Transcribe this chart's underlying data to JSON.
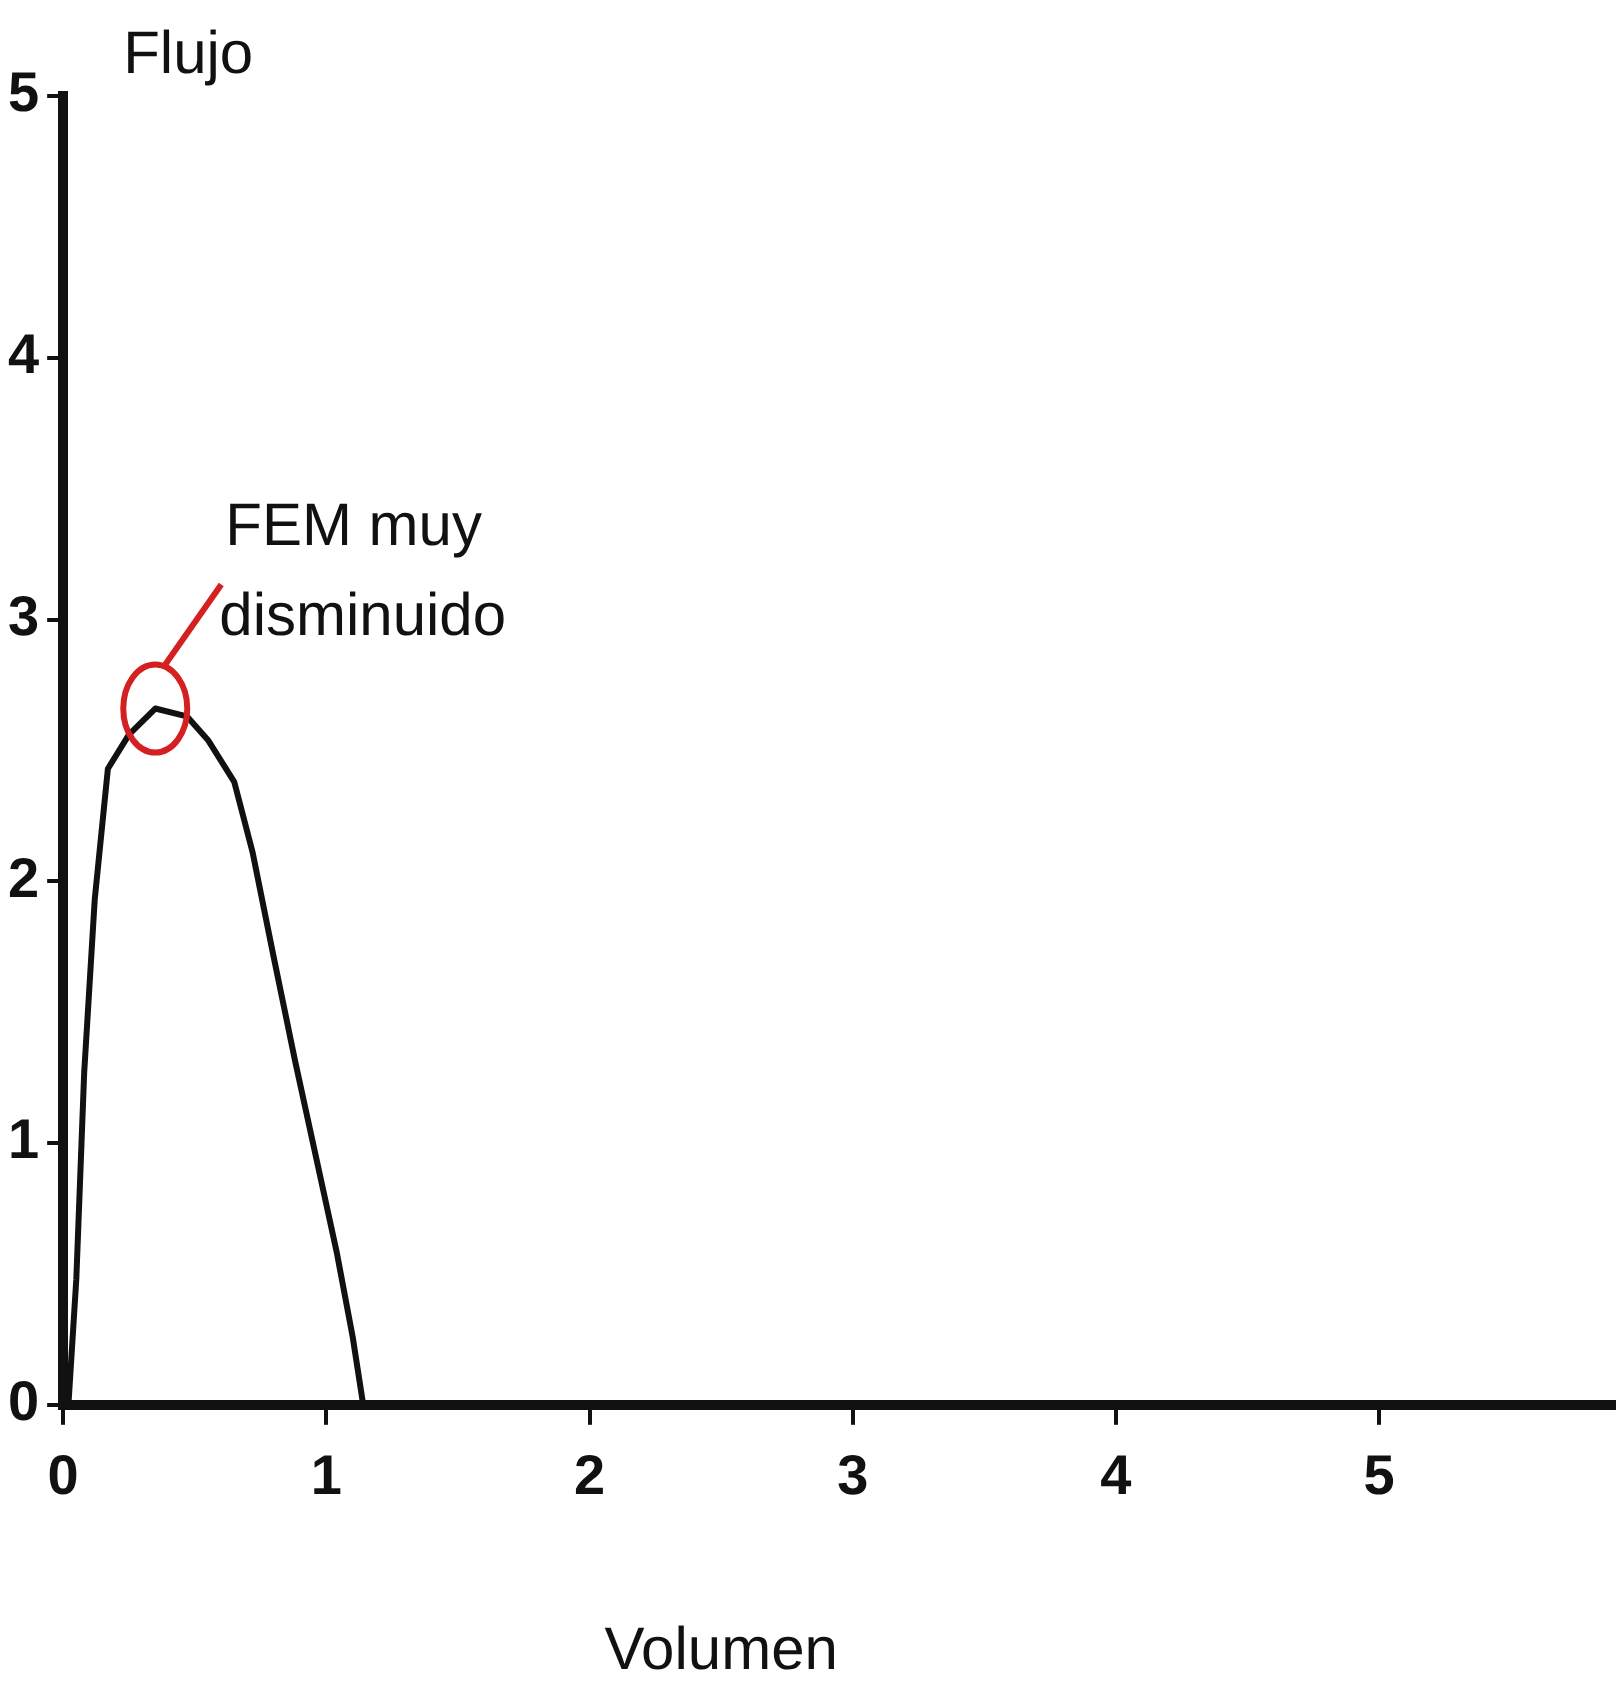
{
  "chart_data": {
    "type": "line",
    "xlabel": "Volumen",
    "ylabel": "Flujo",
    "x": [
      0,
      0.02,
      0.05,
      0.08,
      0.12,
      0.17,
      0.25,
      0.35,
      0.47,
      0.55,
      0.65,
      0.72,
      0.8,
      0.88,
      0.96,
      1.04,
      1.1,
      1.14
    ],
    "series": [
      {
        "color": "#111111",
        "values": [
          0,
          0,
          0.48,
          1.27,
          1.93,
          2.43,
          2.56,
          2.66,
          2.63,
          2.54,
          2.38,
          2.11,
          1.71,
          1.32,
          0.95,
          0.58,
          0.26,
          0
        ]
      }
    ],
    "xlim": [
      0,
      5.9
    ],
    "xticks": [
      0,
      1,
      2,
      3,
      4,
      5
    ],
    "ylim": [
      0,
      5
    ],
    "yticks": [
      0,
      1,
      2,
      3,
      4,
      5
    ],
    "grid": false,
    "legend": false,
    "marker": "none",
    "line_style": "solid",
    "annotations": [
      {
        "text": "FEM muy disminuido",
        "x": 0.35,
        "y": 2.66
      }
    ]
  }
}
